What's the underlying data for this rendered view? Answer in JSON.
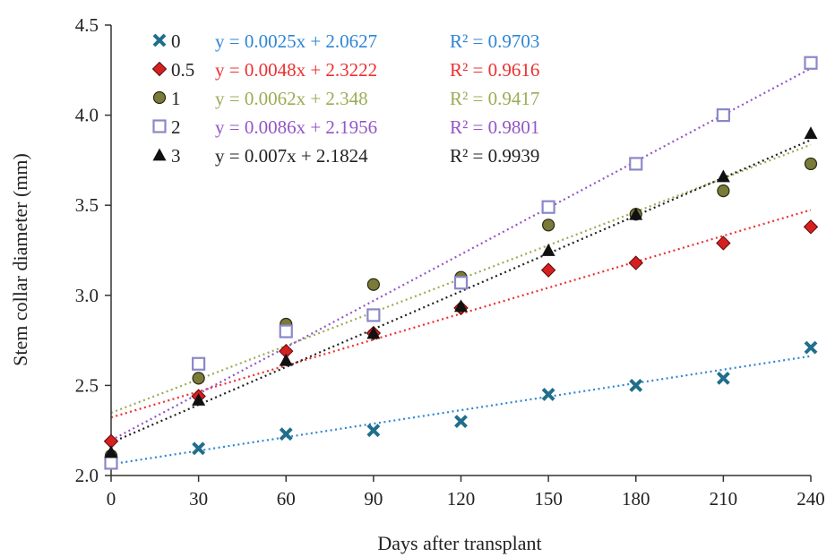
{
  "chart_data": {
    "type": "scatter",
    "title": "",
    "xlabel": "Days after transplant",
    "ylabel": "Stem collar diameter (mm)",
    "xlim": [
      0,
      240
    ],
    "ylim": [
      2.0,
      4.5
    ],
    "x_ticks": [
      0,
      30,
      60,
      90,
      120,
      150,
      180,
      210,
      240
    ],
    "x_tick_labels": [
      "0",
      "30",
      "60",
      "90",
      "120",
      "150",
      "180",
      "210",
      "240"
    ],
    "y_ticks": [
      2.0,
      2.5,
      3.0,
      3.5,
      4.0,
      4.5
    ],
    "y_tick_labels": [
      "2.0",
      "2.5",
      "3.0",
      "3.5",
      "4.0",
      "4.5"
    ],
    "grid": false,
    "legend_position": "top-left",
    "x": [
      0,
      30,
      60,
      90,
      120,
      150,
      180,
      210,
      240
    ],
    "series": [
      {
        "name": "0",
        "marker": "x-cross",
        "color": "#1f6f8b",
        "values": [
          2.07,
          2.15,
          2.23,
          2.25,
          2.3,
          2.45,
          2.5,
          2.54,
          2.71
        ],
        "trendline": {
          "slope": 0.0025,
          "intercept": 2.0627,
          "color": "#2e86d4",
          "equation": "y = 0.0025x + 2.0627",
          "r2": "R² = 0.9703"
        }
      },
      {
        "name": "0.5",
        "marker": "diamond",
        "color": "#d62020",
        "values": [
          2.19,
          2.44,
          2.69,
          2.79,
          2.93,
          3.14,
          3.18,
          3.29,
          3.38
        ],
        "trendline": {
          "slope": 0.0048,
          "intercept": 2.3222,
          "color": "#ee3030",
          "equation": "y = 0.0048x + 2.3222",
          "r2": "R² = 0.9616"
        }
      },
      {
        "name": "1",
        "marker": "circle",
        "color": "#7a7a3a",
        "values": [
          2.11,
          2.54,
          2.84,
          3.06,
          3.1,
          3.39,
          3.45,
          3.58,
          3.73
        ],
        "trendline": {
          "slope": 0.0062,
          "intercept": 2.348,
          "color": "#9aac55",
          "equation": "y = 0.0062x + 2.348",
          "r2": "R² = 0.9417"
        }
      },
      {
        "name": "2",
        "marker": "square",
        "color": "#8a88c8",
        "values": [
          2.07,
          2.62,
          2.8,
          2.89,
          3.07,
          3.49,
          3.73,
          4.0,
          4.29
        ],
        "trendline": {
          "slope": 0.0086,
          "intercept": 2.1956,
          "color": "#9455c8",
          "equation": "y = 0.0086x + 2.1956",
          "r2": "R² = 0.9801"
        }
      },
      {
        "name": "3",
        "marker": "triangle",
        "color": "#111111",
        "values": [
          2.13,
          2.42,
          2.64,
          2.79,
          2.94,
          3.25,
          3.45,
          3.66,
          3.9
        ],
        "trendline": {
          "slope": 0.007,
          "intercept": 2.1824,
          "color": "#222222",
          "equation": "y = 0.007x + 2.1824",
          "r2": "R² = 0.9939"
        }
      }
    ]
  }
}
